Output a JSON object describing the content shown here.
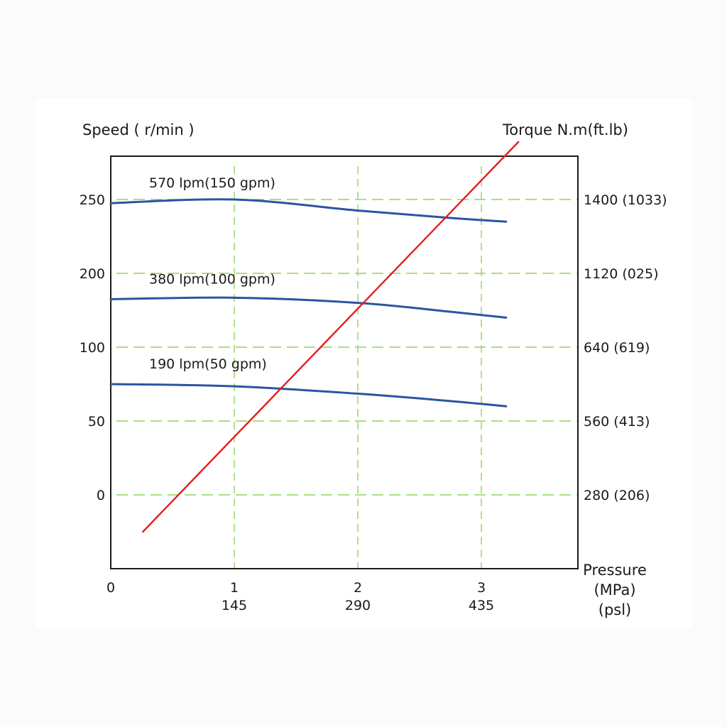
{
  "chart_data": {
    "type": "line",
    "left_axis_title": "Speed ( r/min )",
    "right_axis_title": "Torque  N.m(ft.lb)",
    "x_axis_title_lines": [
      "Pressure",
      "(MPa)",
      "(psl)"
    ],
    "x_ticks": [
      {
        "mpa": "0",
        "psi": ""
      },
      {
        "mpa": "1",
        "psi": "145"
      },
      {
        "mpa": "2",
        "psi": "290"
      },
      {
        "mpa": "3",
        "psi": "435"
      }
    ],
    "left_tick_labels": [
      "0",
      "50",
      "100",
      "200",
      "250"
    ],
    "right_tick_labels": [
      "280 (206)",
      "560 (413)",
      "640 (619)",
      "1120 (025)",
      "1400 (1033)"
    ],
    "grid": true,
    "xlim": [
      0,
      3.8
    ],
    "series": [
      {
        "name": "570 lpm(150 gpm)",
        "color": "#2b55a0",
        "points": [
          [
            0,
            3.95
          ],
          [
            1,
            4.0
          ],
          [
            2,
            3.85
          ],
          [
            2.75,
            3.75
          ],
          [
            3.2,
            3.7
          ]
        ]
      },
      {
        "name": "380 lpm(100 gpm)",
        "color": "#2b55a0",
        "points": [
          [
            0,
            2.65
          ],
          [
            1,
            2.67
          ],
          [
            2,
            2.6
          ],
          [
            2.75,
            2.48
          ],
          [
            3.2,
            2.4
          ]
        ]
      },
      {
        "name": "190 lpm(50 gpm)",
        "color": "#2b55a0",
        "points": [
          [
            0,
            1.5
          ],
          [
            1,
            1.47
          ],
          [
            2,
            1.37
          ],
          [
            2.75,
            1.27
          ],
          [
            3.2,
            1.2
          ]
        ]
      },
      {
        "name": "",
        "color": "#e41e1e",
        "points": [
          [
            0.26,
            -0.5
          ],
          [
            3.3,
            4.78
          ]
        ]
      }
    ]
  }
}
